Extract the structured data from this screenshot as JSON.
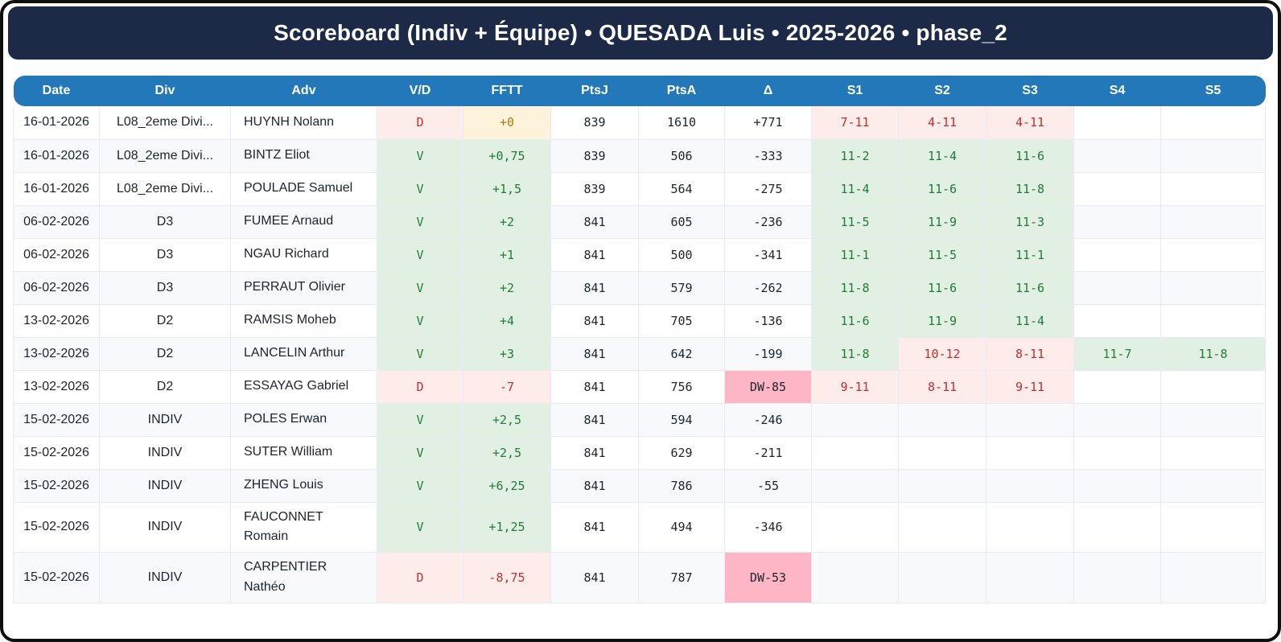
{
  "header": {
    "title": "Scoreboard (Indiv + Équipe) • QUESADA Luis • 2025-2026 • phase_2"
  },
  "table": {
    "columns": [
      "Date",
      "Div",
      "Adv",
      "V/D",
      "FFTT",
      "PtsJ",
      "PtsA",
      "Δ",
      "S1",
      "S2",
      "S3",
      "S4",
      "S5"
    ],
    "rows": [
      {
        "date": "16-01-2026",
        "div": "L08_2eme Divi...",
        "adv": "HUYNH Nolann",
        "vd": "D",
        "vd_status": "loss",
        "fftt": "+0",
        "fftt_status": "zero",
        "ptsj": "839",
        "ptsa": "1610",
        "delta": "+771",
        "delta_status": "normal",
        "sets": [
          {
            "v": "7-11",
            "status": "loss"
          },
          {
            "v": "4-11",
            "status": "loss"
          },
          {
            "v": "4-11",
            "status": "loss"
          },
          null,
          null
        ]
      },
      {
        "date": "16-01-2026",
        "div": "L08_2eme Divi...",
        "adv": "BINTZ Eliot",
        "vd": "V",
        "vd_status": "win",
        "fftt": "+0,75",
        "fftt_status": "win",
        "ptsj": "839",
        "ptsa": "506",
        "delta": "-333",
        "delta_status": "normal",
        "sets": [
          {
            "v": "11-2",
            "status": "win"
          },
          {
            "v": "11-4",
            "status": "win"
          },
          {
            "v": "11-6",
            "status": "win"
          },
          null,
          null
        ]
      },
      {
        "date": "16-01-2026",
        "div": "L08_2eme Divi...",
        "adv": "POULADE Samuel",
        "vd": "V",
        "vd_status": "win",
        "fftt": "+1,5",
        "fftt_status": "win",
        "ptsj": "839",
        "ptsa": "564",
        "delta": "-275",
        "delta_status": "normal",
        "sets": [
          {
            "v": "11-4",
            "status": "win"
          },
          {
            "v": "11-6",
            "status": "win"
          },
          {
            "v": "11-8",
            "status": "win"
          },
          null,
          null
        ]
      },
      {
        "date": "06-02-2026",
        "div": "D3",
        "adv": "FUMEE Arnaud",
        "vd": "V",
        "vd_status": "win",
        "fftt": "+2",
        "fftt_status": "win",
        "ptsj": "841",
        "ptsa": "605",
        "delta": "-236",
        "delta_status": "normal",
        "sets": [
          {
            "v": "11-5",
            "status": "win"
          },
          {
            "v": "11-9",
            "status": "win"
          },
          {
            "v": "11-3",
            "status": "win"
          },
          null,
          null
        ]
      },
      {
        "date": "06-02-2026",
        "div": "D3",
        "adv": "NGAU Richard",
        "vd": "V",
        "vd_status": "win",
        "fftt": "+1",
        "fftt_status": "win",
        "ptsj": "841",
        "ptsa": "500",
        "delta": "-341",
        "delta_status": "normal",
        "sets": [
          {
            "v": "11-1",
            "status": "win"
          },
          {
            "v": "11-5",
            "status": "win"
          },
          {
            "v": "11-1",
            "status": "win"
          },
          null,
          null
        ]
      },
      {
        "date": "06-02-2026",
        "div": "D3",
        "adv": "PERRAUT Olivier",
        "vd": "V",
        "vd_status": "win",
        "fftt": "+2",
        "fftt_status": "win",
        "ptsj": "841",
        "ptsa": "579",
        "delta": "-262",
        "delta_status": "normal",
        "sets": [
          {
            "v": "11-8",
            "status": "win"
          },
          {
            "v": "11-6",
            "status": "win"
          },
          {
            "v": "11-6",
            "status": "win"
          },
          null,
          null
        ]
      },
      {
        "date": "13-02-2026",
        "div": "D2",
        "adv": "RAMSIS Moheb",
        "vd": "V",
        "vd_status": "win",
        "fftt": "+4",
        "fftt_status": "win",
        "ptsj": "841",
        "ptsa": "705",
        "delta": "-136",
        "delta_status": "normal",
        "sets": [
          {
            "v": "11-6",
            "status": "win"
          },
          {
            "v": "11-9",
            "status": "win"
          },
          {
            "v": "11-4",
            "status": "win"
          },
          null,
          null
        ]
      },
      {
        "date": "13-02-2026",
        "div": "D2",
        "adv": "LANCELIN Arthur",
        "vd": "V",
        "vd_status": "win",
        "fftt": "+3",
        "fftt_status": "win",
        "ptsj": "841",
        "ptsa": "642",
        "delta": "-199",
        "delta_status": "normal",
        "sets": [
          {
            "v": "11-8",
            "status": "win"
          },
          {
            "v": "10-12",
            "status": "loss"
          },
          {
            "v": "8-11",
            "status": "loss"
          },
          {
            "v": "11-7",
            "status": "win"
          },
          {
            "v": "11-8",
            "status": "win"
          }
        ]
      },
      {
        "date": "13-02-2026",
        "div": "D2",
        "adv": "ESSAYAG Gabriel",
        "vd": "D",
        "vd_status": "loss",
        "fftt": "-7",
        "fftt_status": "loss",
        "ptsj": "841",
        "ptsa": "756",
        "delta": "DW-85",
        "delta_status": "dw",
        "sets": [
          {
            "v": "9-11",
            "status": "loss"
          },
          {
            "v": "8-11",
            "status": "loss"
          },
          {
            "v": "9-11",
            "status": "loss"
          },
          null,
          null
        ]
      },
      {
        "date": "15-02-2026",
        "div": "INDIV",
        "adv": "POLES Erwan",
        "vd": "V",
        "vd_status": "win",
        "fftt": "+2,5",
        "fftt_status": "win",
        "ptsj": "841",
        "ptsa": "594",
        "delta": "-246",
        "delta_status": "normal",
        "sets": [
          null,
          null,
          null,
          null,
          null
        ]
      },
      {
        "date": "15-02-2026",
        "div": "INDIV",
        "adv": "SUTER William",
        "vd": "V",
        "vd_status": "win",
        "fftt": "+2,5",
        "fftt_status": "win",
        "ptsj": "841",
        "ptsa": "629",
        "delta": "-211",
        "delta_status": "normal",
        "sets": [
          null,
          null,
          null,
          null,
          null
        ]
      },
      {
        "date": "15-02-2026",
        "div": "INDIV",
        "adv": "ZHENG Louis",
        "vd": "V",
        "vd_status": "win",
        "fftt": "+6,25",
        "fftt_status": "win",
        "ptsj": "841",
        "ptsa": "786",
        "delta": "-55",
        "delta_status": "normal",
        "sets": [
          null,
          null,
          null,
          null,
          null
        ]
      },
      {
        "date": "15-02-2026",
        "div": "INDIV",
        "adv": "FAUCONNET Romain",
        "vd": "V",
        "vd_status": "win",
        "fftt": "+1,25",
        "fftt_status": "win",
        "ptsj": "841",
        "ptsa": "494",
        "delta": "-346",
        "delta_status": "normal",
        "sets": [
          null,
          null,
          null,
          null,
          null
        ]
      },
      {
        "date": "15-02-2026",
        "div": "INDIV",
        "adv": "CARPENTIER Nathéo",
        "vd": "D",
        "vd_status": "loss",
        "fftt": "-8,75",
        "fftt_status": "loss",
        "ptsj": "841",
        "ptsa": "787",
        "delta": "DW-53",
        "delta_status": "dw",
        "sets": [
          null,
          null,
          null,
          null,
          null
        ]
      }
    ]
  },
  "colors": {
    "titlebar_bg": "#1c2a47",
    "header_bg": "#2278b9",
    "win_bg": "#e1f0e3",
    "win_text": "#1e7e34",
    "loss_bg": "#fdecea",
    "loss_text": "#c22f2f",
    "zero_bg": "#fdf3da",
    "zero_text": "#b07a10",
    "dw_bg": "#ffb6c4",
    "row_alt_bg": "#f7f9fc"
  }
}
